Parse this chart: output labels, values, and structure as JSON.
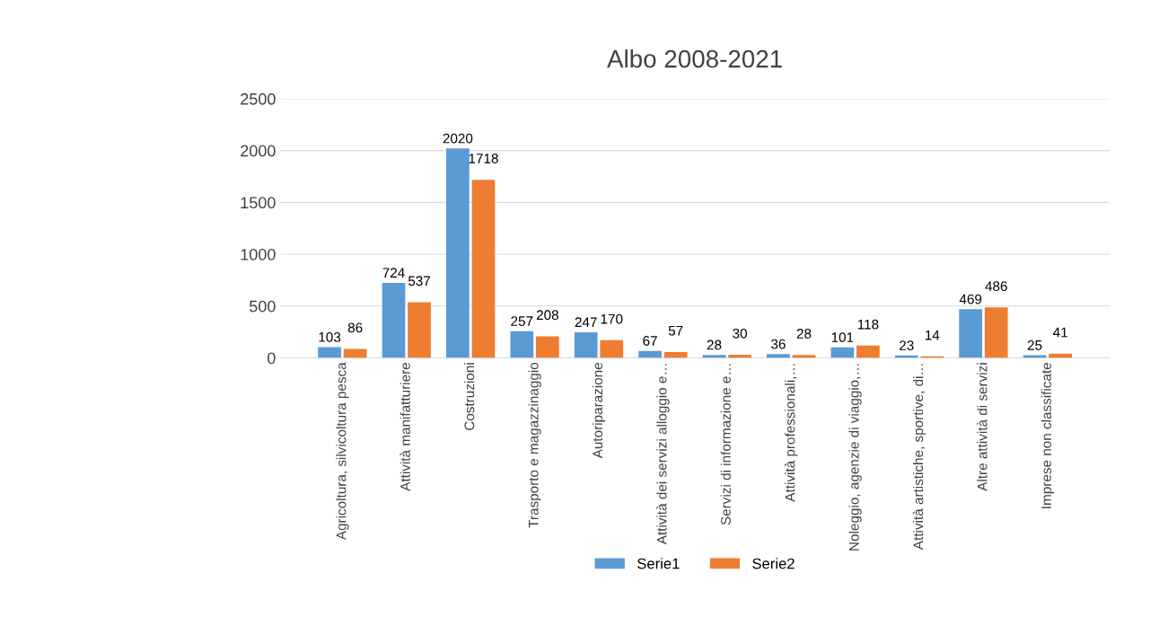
{
  "chart_data": {
    "type": "bar",
    "title": "Albo 2008-2021",
    "categories": [
      "Agricoltura, silvicoltura pesca",
      "Attività manifatturiere",
      "Costruzioni",
      "Trasporto e magazzinaggio",
      "Autoriparazione",
      "Attività dei servizi alloggio e…",
      "Servizi di informazione e…",
      "Attività professionali,…",
      "Noleggio, agenzie di viaggio,…",
      "Attività artistiche, sportive, di…",
      "Altre attività di servizi",
      "Imprese non classificate"
    ],
    "series": [
      {
        "name": "Serie1",
        "color": "#5b9bd5",
        "values": [
          103,
          724,
          2020,
          257,
          247,
          67,
          28,
          36,
          101,
          23,
          469,
          25
        ]
      },
      {
        "name": "Serie2",
        "color": "#ed7d31",
        "values": [
          86,
          537,
          1718,
          208,
          170,
          57,
          30,
          28,
          118,
          14,
          486,
          41
        ]
      }
    ],
    "ylim": [
      0,
      2500
    ],
    "yticks": [
      0,
      500,
      1000,
      1500,
      2000,
      2500
    ],
    "grid": "y",
    "legend": "bottom",
    "data_labels": true
  }
}
